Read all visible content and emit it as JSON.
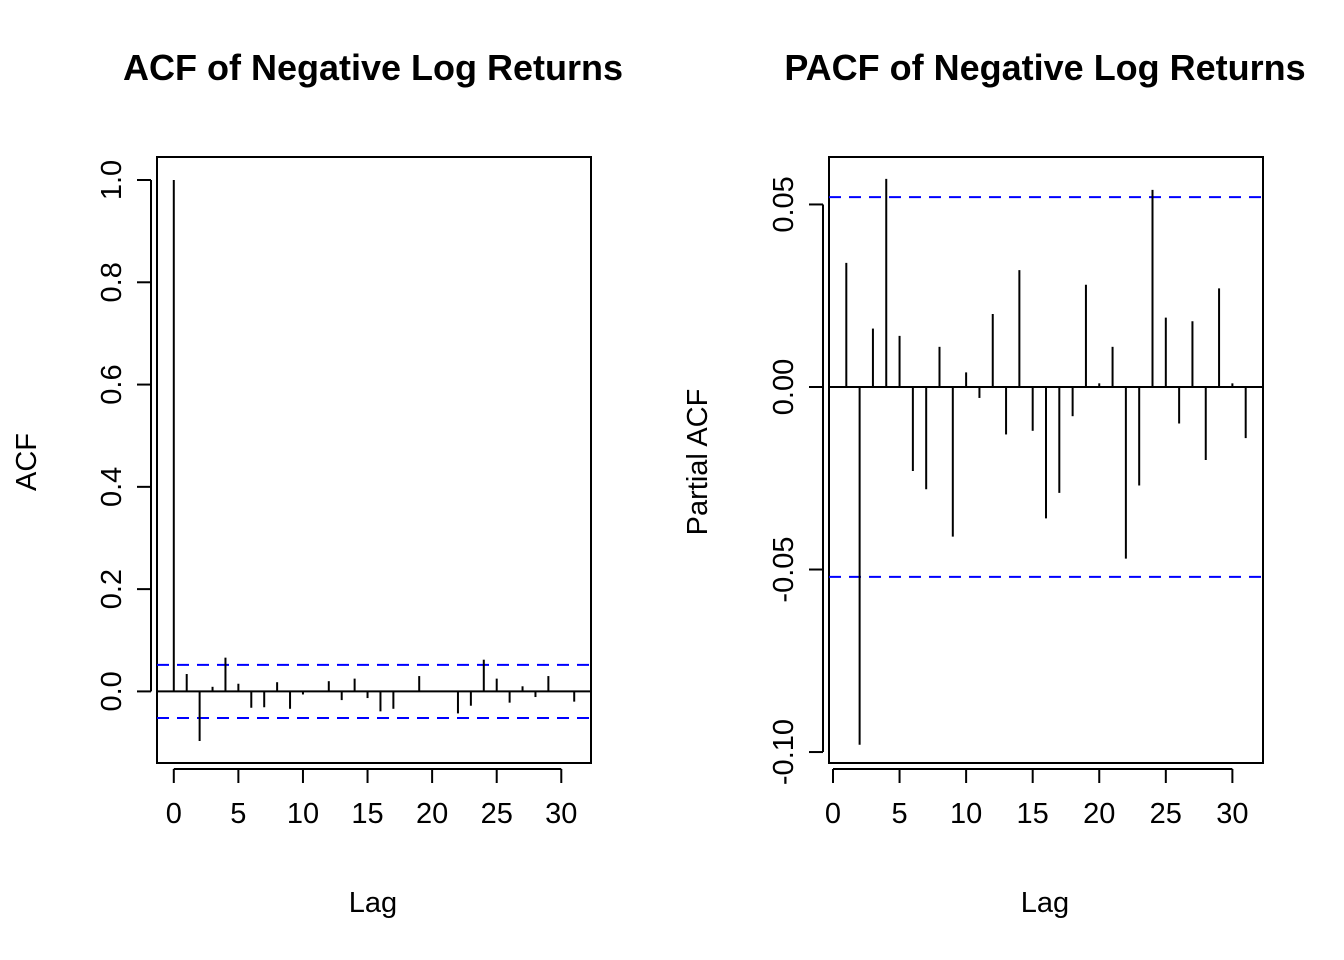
{
  "chart_data": [
    {
      "type": "bar",
      "title": "ACF of Negative Log Returns",
      "xlabel": "Lag",
      "ylabel": "ACF",
      "xlim": [
        -1.3,
        32.3
      ],
      "ylim": [
        -0.14,
        1.045
      ],
      "x_ticks": [
        0,
        5,
        10,
        15,
        20,
        25,
        30
      ],
      "y_ticks": [
        0.0,
        0.2,
        0.4,
        0.6,
        0.8,
        1.0
      ],
      "y_tick_labels": [
        "0.0",
        "0.2",
        "0.4",
        "0.6",
        "0.8",
        "1.0"
      ],
      "x_tick_labels": [
        "0",
        "5",
        "10",
        "15",
        "20",
        "25",
        "30"
      ],
      "confidence_bound": 0.052,
      "confidence_color": "#0000ff",
      "lags": [
        0,
        1,
        2,
        3,
        4,
        5,
        6,
        7,
        8,
        9,
        10,
        11,
        12,
        13,
        14,
        15,
        16,
        17,
        18,
        19,
        20,
        21,
        22,
        23,
        24,
        25,
        26,
        27,
        28,
        29,
        30,
        31
      ],
      "values": [
        1.0,
        0.034,
        -0.097,
        0.009,
        0.066,
        0.015,
        -0.032,
        -0.031,
        0.018,
        -0.034,
        -0.006,
        0.0,
        0.02,
        -0.017,
        0.025,
        -0.013,
        -0.039,
        -0.034,
        0.0,
        0.03,
        0.0,
        -0.001,
        -0.043,
        -0.028,
        0.062,
        0.025,
        -0.022,
        0.01,
        -0.011,
        0.03,
        0.0,
        -0.02
      ]
    },
    {
      "type": "bar",
      "title": "PACF of Negative Log Returns",
      "xlabel": "Lag",
      "ylabel": "Partial ACF",
      "xlim": [
        -0.3,
        32.3
      ],
      "ylim": [
        -0.103,
        0.063
      ],
      "x_ticks": [
        0,
        5,
        10,
        15,
        20,
        25,
        30
      ],
      "y_ticks": [
        -0.1,
        -0.05,
        0.0,
        0.05
      ],
      "y_tick_labels": [
        "-0.10",
        "-0.05",
        "0.00",
        "0.05"
      ],
      "x_tick_labels": [
        "0",
        "5",
        "10",
        "15",
        "20",
        "25",
        "30"
      ],
      "confidence_bound": 0.052,
      "confidence_color": "#0000ff",
      "lags": [
        1,
        2,
        3,
        4,
        5,
        6,
        7,
        8,
        9,
        10,
        11,
        12,
        13,
        14,
        15,
        16,
        17,
        18,
        19,
        20,
        21,
        22,
        23,
        24,
        25,
        26,
        27,
        28,
        29,
        30,
        31
      ],
      "values": [
        0.034,
        -0.098,
        0.016,
        0.057,
        0.014,
        -0.023,
        -0.028,
        0.011,
        -0.041,
        0.004,
        -0.003,
        0.02,
        -0.013,
        0.032,
        -0.012,
        -0.036,
        -0.029,
        -0.008,
        0.028,
        0.001,
        0.011,
        -0.047,
        -0.027,
        0.054,
        0.019,
        -0.01,
        0.018,
        -0.02,
        0.027,
        0.001,
        -0.014
      ]
    }
  ]
}
